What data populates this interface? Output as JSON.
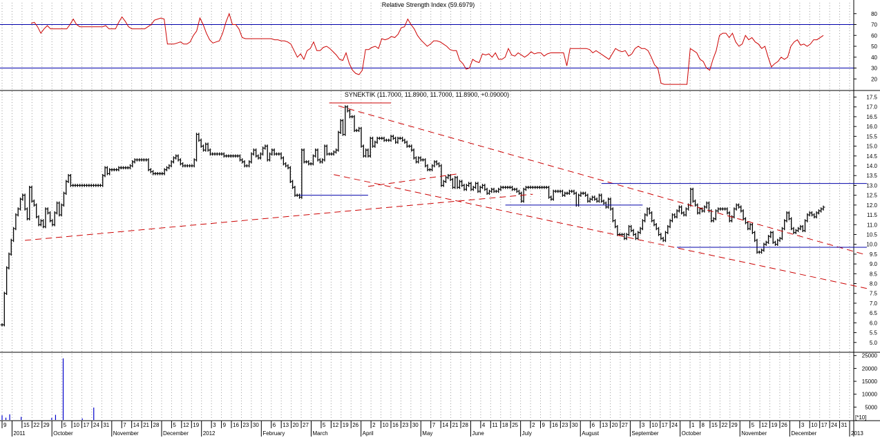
{
  "colors": {
    "price": "#000000",
    "rsi": "#cc0000",
    "levels": "#0000aa",
    "trend": "#cc0000",
    "volume": "#0000cc",
    "grid": "#9a9a9a"
  },
  "date_axis": {
    "labels": [
      "9",
      "2011",
      "15",
      "22",
      "29",
      "October",
      "5",
      "10",
      "17",
      "24",
      "31",
      "November",
      "7",
      "14",
      "21",
      "28",
      "December",
      "5",
      "12",
      "19",
      "2012",
      "3",
      "9",
      "16",
      "23",
      "30",
      "February",
      "6",
      "13",
      "20",
      "27",
      "March",
      "5",
      "12",
      "19",
      "26",
      "April",
      "2",
      "10",
      "16",
      "23",
      "30",
      "May",
      "7",
      "14",
      "21",
      "28",
      "June",
      "4",
      "11",
      "18",
      "25",
      "July",
      "2",
      "9",
      "16",
      "23",
      "30",
      "August",
      "6",
      "13",
      "20",
      "27",
      "September",
      "3",
      "10",
      "17",
      "24",
      "October",
      "1",
      "8",
      "15",
      "22",
      "29",
      "November",
      "5",
      "12",
      "19",
      "26",
      "December",
      "3",
      "10",
      "17",
      "24",
      "31",
      "2013"
    ]
  },
  "chart_data": [
    {
      "type": "line",
      "title": "Relative Strength Index (59.6979)",
      "ylim": [
        10,
        90
      ],
      "yticks": [
        "20",
        "30",
        "40",
        "50",
        "60",
        "70",
        "80"
      ],
      "levels": [
        30,
        70
      ],
      "series": [
        {
          "values": [
            71,
            72,
            68,
            62,
            66,
            69,
            66,
            66,
            66,
            66,
            66,
            66,
            70,
            75,
            70,
            68,
            68,
            68,
            68,
            68,
            68,
            68,
            68,
            69,
            66,
            66,
            66,
            72,
            77,
            73,
            68,
            66,
            66,
            66,
            66,
            66,
            68,
            70,
            74,
            75,
            76,
            75,
            52,
            52,
            52,
            53,
            54,
            52,
            52,
            54,
            60,
            64,
            76,
            70,
            62,
            56,
            53,
            54,
            55,
            62,
            72,
            80,
            70,
            70,
            66,
            58,
            57,
            57,
            57,
            57,
            57,
            57,
            57,
            57,
            57,
            56,
            56,
            55,
            55,
            54,
            52,
            46,
            40,
            43,
            38,
            46,
            48,
            54,
            46,
            46,
            49,
            50,
            48,
            45,
            42,
            38,
            37,
            44,
            34,
            28,
            25,
            24,
            28,
            47,
            47,
            49,
            50,
            48,
            57,
            56,
            57,
            59,
            58,
            61,
            67,
            68,
            75,
            70,
            66,
            60,
            56,
            53,
            50,
            52,
            55,
            55,
            54,
            52,
            50,
            47,
            46,
            46,
            37,
            34,
            29,
            30,
            38,
            36,
            35,
            43,
            42,
            43,
            40,
            44,
            38,
            38,
            40,
            48,
            42,
            41,
            44,
            42,
            40,
            42,
            45,
            43,
            44,
            44,
            41,
            43,
            44,
            44,
            44,
            44,
            44,
            32,
            48,
            48,
            48,
            48,
            48,
            48,
            47,
            44,
            46,
            44,
            42,
            40,
            38,
            43,
            48,
            46,
            45,
            46,
            41,
            43,
            48,
            50,
            48,
            48,
            46,
            40,
            33,
            30,
            16,
            15,
            15,
            15,
            15,
            15,
            15,
            15,
            15,
            48,
            46,
            44,
            38,
            36,
            30,
            28,
            38,
            46,
            60,
            62,
            62,
            58,
            62,
            54,
            50,
            52,
            60,
            56,
            58,
            54,
            52,
            48,
            50,
            40,
            31,
            34,
            36,
            40,
            38,
            40,
            50,
            54,
            56,
            51,
            52,
            50,
            52,
            56,
            56,
            58,
            60
          ]
        }
      ]
    },
    {
      "type": "ohlc",
      "title": "SYNEKTIK (11.7000, 11.8900, 11.7000, 11.8900, +0.09000)",
      "ylim": [
        4.5,
        17.8
      ],
      "yticks": [
        "5.0",
        "5.5",
        "6.0",
        "6.5",
        "7.0",
        "7.5",
        "8.0",
        "8.5",
        "9.0",
        "9.5",
        "10.0",
        "10.5",
        "11.0",
        "11.5",
        "12.0",
        "12.5",
        "13.0",
        "13.5",
        "14.0",
        "14.5",
        "15.0",
        "15.5",
        "16.0",
        "16.5",
        "17.0",
        "17.5"
      ],
      "series": [
        {
          "name": "SYNEKTIK",
          "close": [
            5.9,
            7.5,
            8.8,
            9.5,
            10.2,
            10.8,
            11.5,
            11.8,
            12.3,
            12.5,
            11.8,
            11.3,
            12.9,
            12.2,
            12.0,
            11.4,
            11.0,
            11.2,
            10.9,
            11.8,
            11.6,
            11.2,
            11.0,
            11.6,
            12.1,
            11.5,
            12.0,
            12.6,
            13.2,
            13.5,
            13.0,
            13.0,
            13.0,
            13.0,
            13.0,
            13.0,
            13.0,
            13.0,
            13.0,
            13.0,
            13.0,
            13.0,
            13.0,
            13.0,
            13.5,
            13.9,
            13.6,
            13.8,
            13.8,
            13.8,
            13.8,
            13.9,
            13.9,
            13.9,
            13.9,
            13.9,
            14.0,
            14.2,
            14.3,
            14.3,
            14.3,
            14.3,
            14.3,
            14.3,
            13.8,
            13.7,
            13.6,
            13.6,
            13.6,
            13.6,
            13.6,
            13.8,
            13.9,
            14.0,
            14.2,
            14.4,
            14.5,
            14.3,
            14.1,
            14.0,
            14.0,
            14.0,
            14.0,
            14.0,
            14.3,
            15.6,
            15.3,
            15.0,
            14.8,
            15.1,
            14.8,
            14.6,
            14.6,
            14.6,
            14.6,
            14.6,
            14.6,
            14.5,
            14.5,
            14.5,
            14.5,
            14.5,
            14.5,
            14.5,
            14.3,
            14.2,
            14.0,
            14.0,
            14.2,
            14.6,
            14.8,
            14.5,
            14.4,
            14.6,
            14.9,
            15.0,
            14.3,
            14.6,
            14.8,
            14.6,
            14.6,
            14.6,
            14.4,
            14.1,
            14.0,
            13.9,
            13.2,
            12.9,
            12.5,
            12.5,
            12.4,
            14.8,
            14.2,
            14.2,
            14.1,
            14.1,
            14.5,
            14.8,
            14.3,
            14.2,
            14.3,
            15.0,
            14.6,
            14.6,
            14.6,
            14.7,
            14.8,
            15.7,
            16.3,
            15.6,
            17.0,
            16.8,
            16.5,
            16.5,
            15.8,
            15.8,
            15.9,
            15.0,
            14.5,
            14.8,
            14.5,
            15.4,
            15.0,
            15.2,
            15.4,
            15.4,
            15.4,
            15.3,
            15.3,
            15.3,
            15.5,
            15.4,
            15.2,
            15.4,
            15.4,
            15.3,
            15.2,
            15.0,
            15.0,
            14.8,
            14.4,
            14.2,
            14.4,
            14.3,
            14.3,
            14.0,
            13.8,
            13.8,
            14.0,
            14.2,
            14.1,
            14.0,
            13.0,
            13.2,
            13.4,
            13.5,
            13.3,
            12.9,
            13.4,
            12.9,
            13.2,
            13.0,
            12.8,
            13.0,
            13.1,
            12.8,
            12.9,
            13.1,
            12.7,
            12.9,
            13.0,
            12.8,
            12.6,
            12.7,
            12.8,
            12.7,
            12.7,
            12.8,
            12.9,
            12.9,
            12.9,
            12.9,
            12.9,
            12.8,
            12.8,
            12.7,
            12.6,
            12.2,
            12.8,
            12.9,
            12.9,
            12.9,
            12.9,
            12.9,
            12.9,
            12.9,
            12.9,
            12.9,
            12.9,
            12.4,
            12.3,
            12.7,
            12.7,
            12.7,
            12.7,
            12.5,
            12.6,
            12.6,
            12.7,
            12.7,
            12.6,
            12.0,
            12.5,
            12.6,
            12.6,
            12.5,
            12.2,
            12.3,
            12.4,
            12.3,
            12.2,
            12.5,
            12.2,
            12.1,
            11.9,
            12.3,
            11.8,
            11.2,
            10.9,
            10.5,
            10.5,
            10.5,
            10.3,
            10.5,
            10.9,
            10.7,
            10.5,
            10.3,
            10.6,
            10.8,
            11.2,
            11.5,
            11.8,
            11.6,
            11.2,
            11.0,
            10.8,
            10.5,
            10.3,
            10.2,
            10.6,
            10.9,
            11.2,
            11.5,
            11.4,
            11.7,
            11.9,
            11.6,
            11.5,
            11.8,
            12.0,
            12.8,
            12.2,
            12.0,
            11.6,
            11.8,
            11.7,
            11.9,
            12.1,
            11.7,
            11.2,
            11.3,
            11.7,
            11.8,
            11.8,
            11.8,
            11.8,
            11.6,
            11.2,
            11.4,
            11.8,
            12.0,
            11.9,
            11.7,
            11.3,
            11.1,
            10.8,
            11.0,
            10.6,
            10.2,
            9.6,
            9.6,
            9.7,
            10.0,
            10.1,
            10.4,
            10.6,
            10.1,
            10.0,
            10.2,
            10.3,
            10.8,
            11.2,
            11.6,
            11.3,
            10.8,
            10.6,
            10.7,
            10.8,
            10.9,
            10.7,
            11.2,
            11.5,
            11.6,
            11.5,
            11.4,
            11.6,
            11.7,
            11.8,
            11.89
          ]
        }
      ]
    },
    {
      "type": "bar",
      "title": "",
      "ylim": [
        0,
        26000
      ],
      "yticks": [
        "5000",
        "10000",
        "15000",
        "20000",
        "25000"
      ],
      "unit_label": "[*10]",
      "series": [
        {
          "name": "Volume",
          "values": [
            1800,
            0,
            900,
            0,
            2200,
            0,
            0,
            0,
            0,
            0,
            1200,
            0,
            0,
            0,
            0,
            0,
            0,
            0,
            0,
            0,
            0,
            0,
            0,
            0,
            0,
            0,
            800,
            0,
            2000,
            0,
            0,
            0,
            23900,
            0,
            0,
            0,
            0,
            0,
            0,
            0,
            0,
            0,
            600,
            0,
            0,
            0,
            0,
            0,
            4800,
            0,
            0,
            0,
            0,
            0,
            0,
            0,
            0,
            0,
            0,
            0,
            0,
            0,
            0,
            0,
            0,
            0,
            0,
            0,
            0,
            0,
            0,
            0,
            0,
            0,
            0,
            0,
            0,
            0,
            0,
            0,
            0,
            0,
            0,
            0,
            0,
            0,
            0,
            0,
            0,
            0,
            0,
            0,
            0,
            0,
            0,
            0,
            0,
            0,
            0,
            0,
            0,
            0,
            0,
            0,
            0,
            0,
            0,
            0,
            0,
            0,
            0,
            0,
            0,
            0,
            0,
            0,
            0,
            0,
            0,
            0,
            0,
            0,
            0,
            0,
            0,
            0,
            0,
            0,
            0,
            0,
            0,
            0,
            0,
            0,
            0,
            0,
            0,
            0,
            0,
            0,
            0,
            0,
            0,
            0,
            0,
            0,
            0,
            0,
            0,
            0,
            0,
            0,
            0,
            0,
            0,
            0,
            0,
            0,
            0,
            0,
            0,
            0,
            0,
            0,
            0,
            0,
            0,
            0,
            0,
            0,
            0,
            0,
            0,
            0,
            0,
            0,
            0,
            0,
            0,
            0,
            0,
            0,
            0,
            0,
            0,
            0,
            0,
            0,
            0,
            0,
            0,
            0,
            0,
            0,
            0,
            0,
            0,
            0,
            0,
            0,
            0,
            0,
            0,
            0,
            0,
            0,
            0,
            0,
            0,
            0,
            0,
            0,
            0,
            0,
            0,
            0,
            0,
            0,
            0,
            0,
            0,
            0,
            0,
            0,
            0,
            0,
            0,
            0,
            0,
            0,
            0,
            0,
            0,
            0,
            0,
            0,
            0,
            0,
            0,
            0,
            0,
            0,
            0,
            0,
            0,
            0,
            0,
            0,
            0,
            0,
            0,
            0,
            0,
            0,
            0,
            0,
            0,
            0,
            0,
            0,
            0,
            0,
            0,
            0,
            0,
            0,
            0,
            0,
            0,
            0,
            0,
            0,
            0,
            0,
            0,
            0,
            0,
            0,
            0,
            0,
            0,
            0,
            0,
            0,
            0,
            0,
            0,
            0,
            0,
            0,
            0,
            0,
            0,
            0,
            0,
            0,
            0,
            0,
            0,
            0,
            0,
            0,
            0,
            0,
            0,
            0,
            0,
            0,
            0,
            0,
            0,
            0,
            0,
            0,
            0,
            0,
            0,
            0,
            0,
            0,
            0,
            0,
            0,
            0,
            0,
            0,
            0,
            0,
            0,
            0,
            0,
            0,
            0,
            0,
            0,
            0,
            0,
            0,
            0,
            0,
            0,
            0,
            0,
            0,
            0,
            0,
            0,
            0,
            0,
            0,
            0,
            0,
            0,
            0,
            0,
            0,
            0,
            0,
            0,
            0,
            0,
            0,
            0,
            0,
            0,
            0,
            0,
            0,
            0,
            0,
            0,
            0,
            0,
            0,
            0,
            0,
            0,
            0,
            0,
            0,
            0,
            0,
            0,
            0,
            0,
            0,
            0,
            0,
            0,
            0,
            0,
            0,
            0,
            0,
            0,
            0,
            0,
            0,
            0,
            0,
            0,
            0,
            0,
            0,
            0,
            0,
            0,
            0,
            0,
            0,
            0,
            0,
            0,
            0,
            0,
            0,
            0,
            0,
            0,
            0,
            0,
            0,
            0,
            0,
            0,
            0,
            0,
            0,
            0,
            0,
            0
          ]
        }
      ]
    }
  ]
}
